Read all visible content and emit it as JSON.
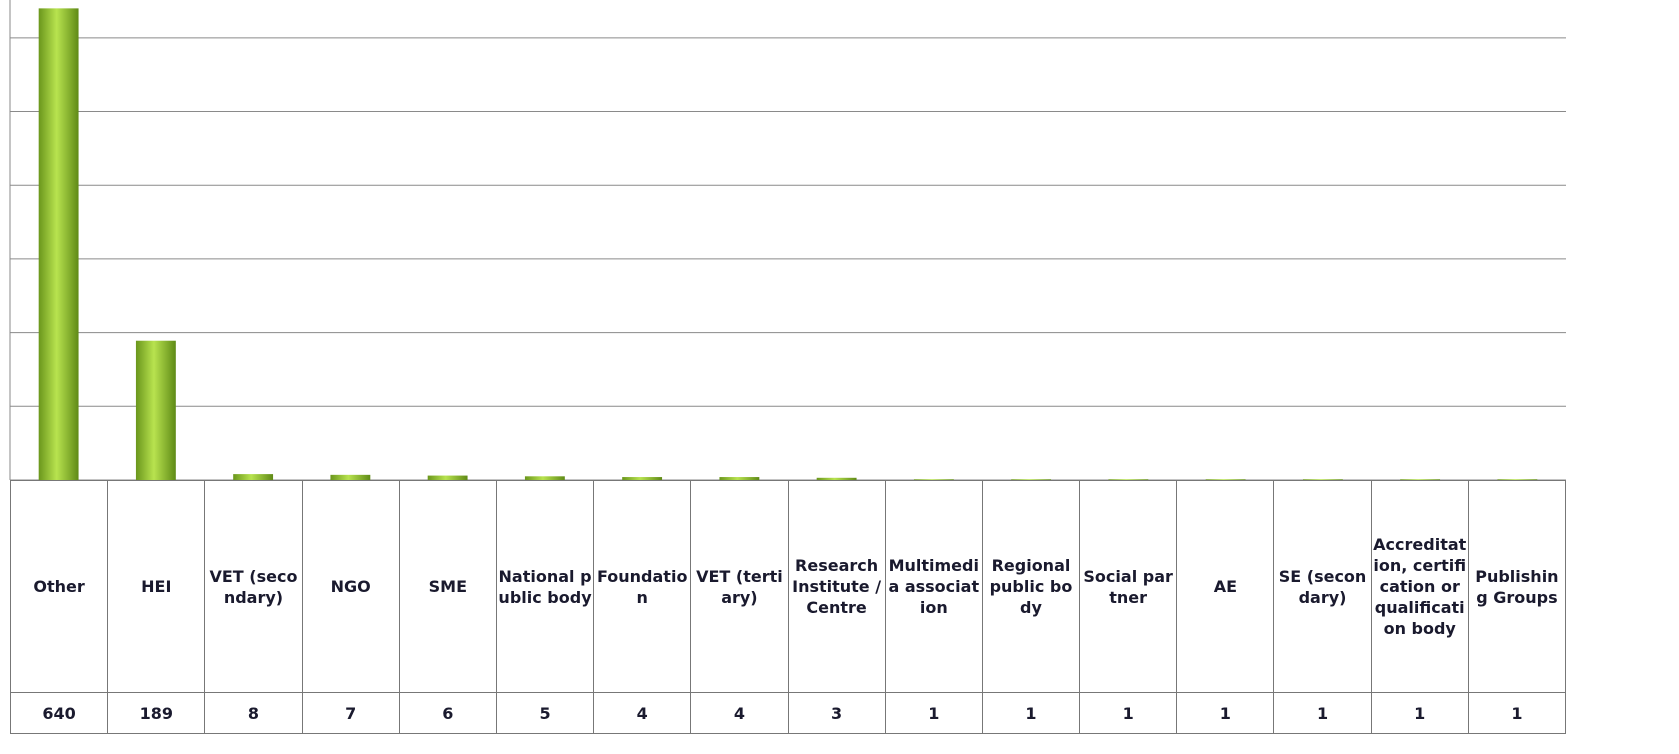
{
  "chart_data": {
    "type": "bar",
    "categories": [
      "Other",
      "HEI",
      "VET (secondary)",
      "NGO",
      "SME",
      "National public body",
      "Foundation",
      "VET (tertiary)",
      "Research Institute /Centre",
      "Multimedia association",
      "Regional public body",
      "Social partner",
      "AE",
      "SE (secondary)",
      "Accreditation, certification or qualification body",
      "Publishing Groups"
    ],
    "values": [
      640,
      189,
      8,
      7,
      6,
      5,
      4,
      4,
      3,
      1,
      1,
      1,
      1,
      1,
      1,
      1
    ],
    "color": "#8dbb2f",
    "ylim": [
      0,
      650
    ],
    "yticks": [
      0,
      100,
      200,
      300,
      400,
      500,
      600
    ],
    "grid": true
  }
}
